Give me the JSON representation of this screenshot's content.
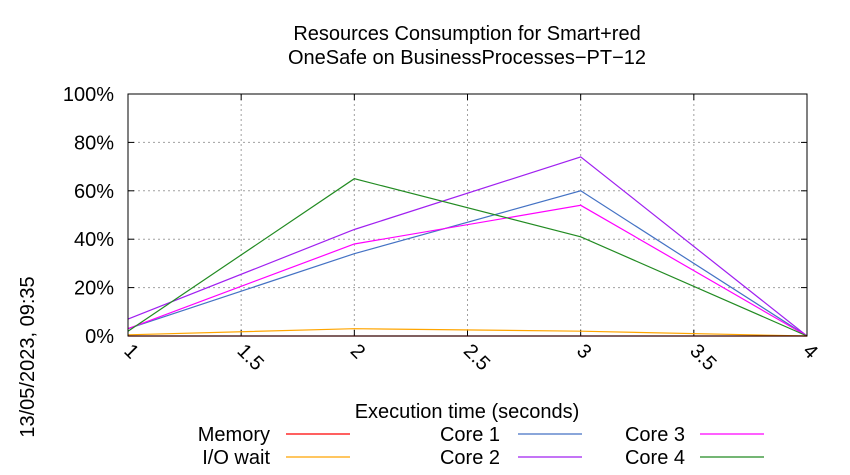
{
  "chart_data": {
    "type": "line",
    "title": [
      "Resources Consumption for Smart+red",
      "OneSafe on BusinessProcesses−PT−12"
    ],
    "xlabel": "Execution time (seconds)",
    "ylabel": "",
    "side_label": "13/05/2023, 09:35",
    "x_ticks": [
      "1",
      "1.5",
      "2",
      "2.5",
      "3",
      "3.5",
      "4"
    ],
    "y_ticks": [
      "0%",
      "20%",
      "40%",
      "60%",
      "80%",
      "100%"
    ],
    "xlim": [
      1,
      4
    ],
    "ylim": [
      0,
      100
    ],
    "grid": true,
    "legend_position": "bottom",
    "x": [
      1,
      2,
      3,
      4
    ],
    "series": [
      {
        "name": "Memory",
        "color": "#ff0000",
        "values": [
          0,
          0,
          0,
          0
        ]
      },
      {
        "name": "I/O wait",
        "color": "#ffa500",
        "values": [
          0.5,
          3,
          2,
          0
        ]
      },
      {
        "name": "Core 1",
        "color": "#4472c4",
        "values": [
          3,
          34,
          60,
          0
        ]
      },
      {
        "name": "Core 2",
        "color": "#a020f0",
        "values": [
          7,
          44,
          74,
          0
        ]
      },
      {
        "name": "Core 3",
        "color": "#ff00ff",
        "values": [
          3,
          38,
          54,
          0
        ]
      },
      {
        "name": "Core 4",
        "color": "#228b22",
        "values": [
          2,
          65,
          41,
          0
        ]
      }
    ]
  }
}
